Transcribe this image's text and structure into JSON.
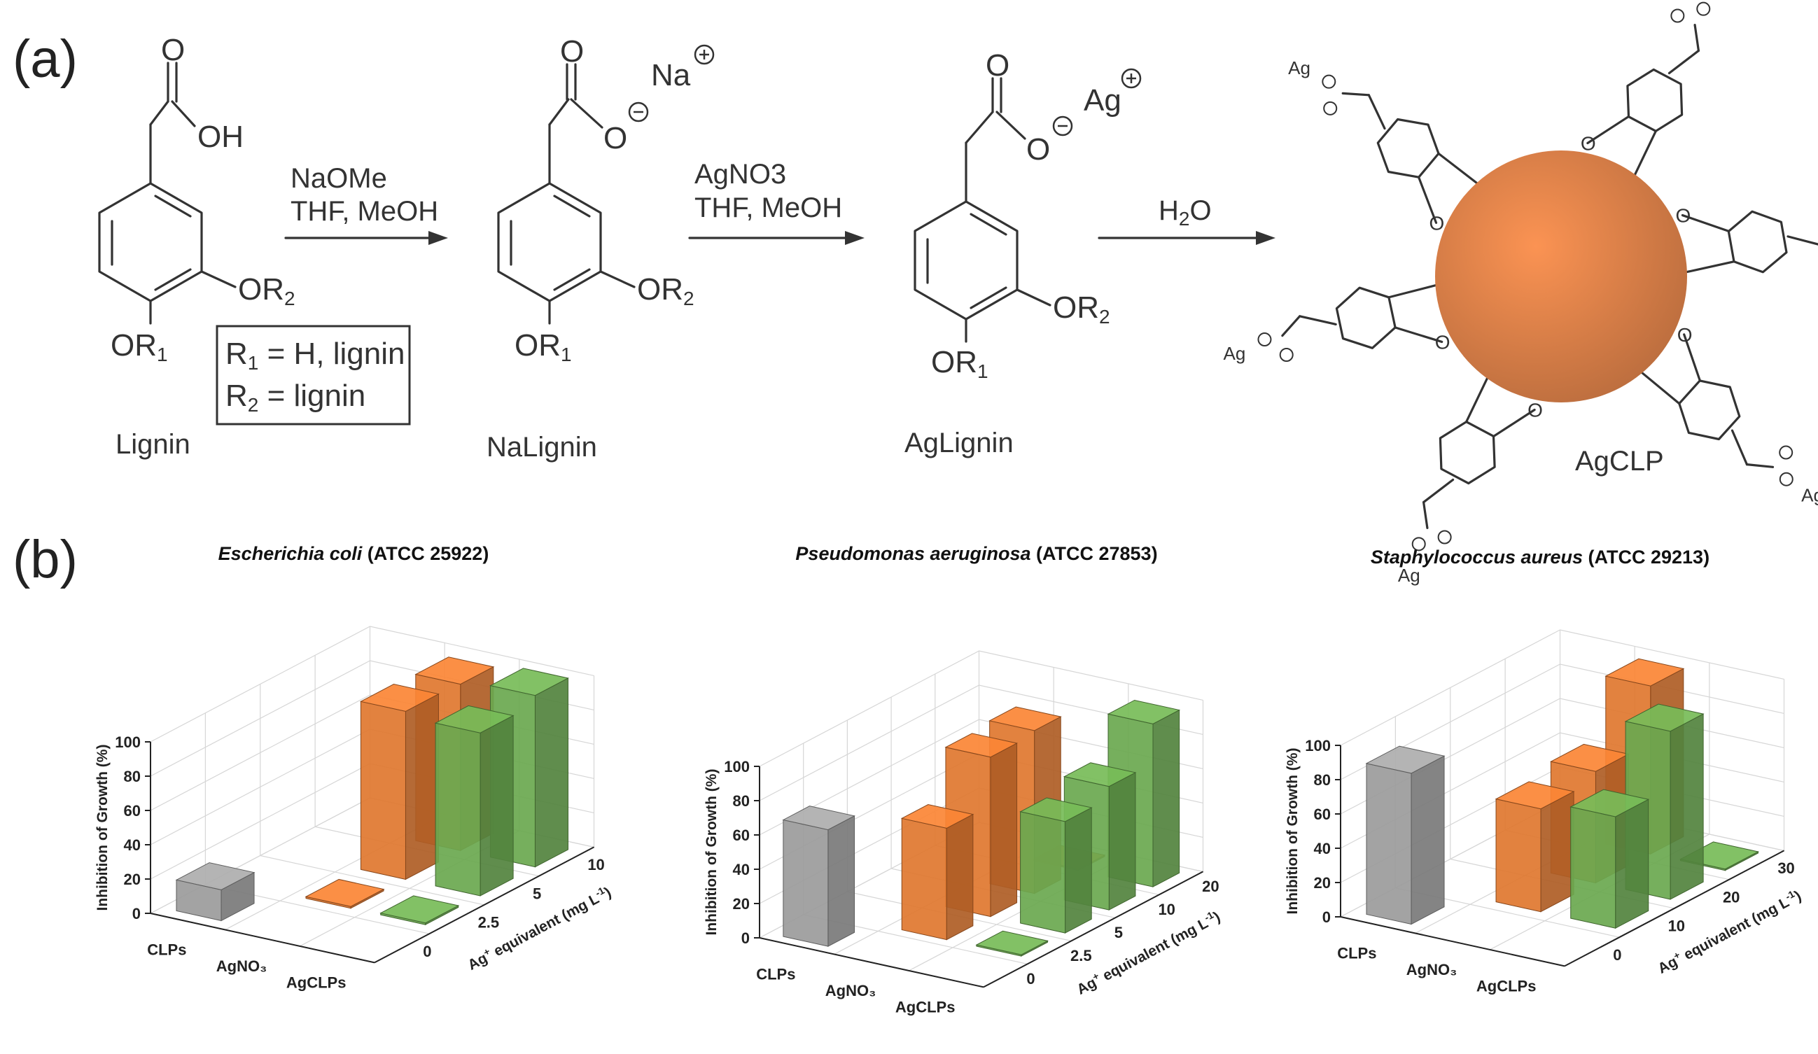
{
  "panel_a": {
    "label": "(a)",
    "compounds": [
      {
        "name": "Lignin",
        "acid": "OH"
      },
      {
        "name": "NaLignin",
        "cation": "Na"
      },
      {
        "name": "AgLignin",
        "cation": "Ag"
      },
      {
        "name": "AgCLP",
        "cation": "Ag"
      }
    ],
    "substituents": {
      "or1": "OR",
      "or1_sub": "1",
      "or2": "OR",
      "or2_sub": "2",
      "ether_o": "O",
      "carbonyl_o": "O"
    },
    "r_groups": {
      "r1_text": "R",
      "r1_sub": "1",
      "r1_rest": " = H, lignin",
      "r2_text": "R",
      "r2_sub": "2",
      "r2_rest": " = lignin"
    },
    "steps": [
      {
        "line1": "NaOMe",
        "line2": "THF, MeOH"
      },
      {
        "line1": "AgNO3",
        "line2": "THF, MeOH"
      },
      {
        "line1": "H",
        "sub": "2",
        "line1b": "O"
      }
    ],
    "particle_color": "#e0834a"
  },
  "panel_b": {
    "label": "(b)",
    "colors": {
      "CLPs": "#9b9b9b",
      "AgNO3": "#e0772f",
      "AgCLPs": "#6aa84f"
    }
  },
  "chart_data": [
    {
      "type": "bar3d",
      "title_italic": "Escherichia coli",
      "title_rest": " (ATCC 25922)",
      "zlabel": "Inhibition of Growth (%)",
      "ylabel": "Ag",
      "ylabel_sup": "+",
      "ylabel_rest": " equivalent (mg L",
      "ylabel_sup2": "-1",
      "ylabel_end": ")",
      "zticks": [
        "0",
        "20",
        "40",
        "60",
        "80",
        "100"
      ],
      "zlim": [
        0,
        100
      ],
      "categories": [
        "CLPs",
        "AgNO₃",
        "AgCLPs"
      ],
      "depth_levels": [
        "0",
        "2.5",
        "5",
        "10"
      ],
      "bars": [
        {
          "series": "CLPs",
          "depth": "0",
          "value": 18
        },
        {
          "series": "AgNO3",
          "depth": "2.5",
          "value": 1
        },
        {
          "series": "AgCLPs",
          "depth": "2.5",
          "value": 1
        },
        {
          "series": "AgNO3",
          "depth": "5",
          "value": 98
        },
        {
          "series": "AgCLPs",
          "depth": "5",
          "value": 95
        },
        {
          "series": "AgNO3",
          "depth": "10",
          "value": 97
        },
        {
          "series": "AgCLPs",
          "depth": "10",
          "value": 100
        }
      ]
    },
    {
      "type": "bar3d",
      "title_italic": "Pseudomonas aeruginosa",
      "title_rest": " (ATCC 27853)",
      "zlabel": "Inhibition of Growth (%)",
      "ylabel": "Ag",
      "ylabel_sup": "+",
      "ylabel_rest": " equivalent (mg L",
      "ylabel_sup2": "-1",
      "ylabel_end": ")",
      "zticks": [
        "0",
        "20",
        "40",
        "60",
        "80",
        "100"
      ],
      "zlim": [
        0,
        100
      ],
      "categories": [
        "CLPs",
        "AgNO₃",
        "AgCLPs"
      ],
      "depth_levels": [
        "0",
        "2.5",
        "5",
        "10",
        "20"
      ],
      "bars": [
        {
          "series": "CLPs",
          "depth": "0",
          "value": 68
        },
        {
          "series": "AgNO3",
          "depth": "2.5",
          "value": 65
        },
        {
          "series": "AgCLPs",
          "depth": "2.5",
          "value": 0
        },
        {
          "series": "AgNO3",
          "depth": "5",
          "value": 93
        },
        {
          "series": "AgCLPs",
          "depth": "5",
          "value": 65
        },
        {
          "series": "AgNO3",
          "depth": "10",
          "value": 95
        },
        {
          "series": "AgCLPs",
          "depth": "10",
          "value": 72
        },
        {
          "series": "AgNO3",
          "depth": "20",
          "value": 0
        },
        {
          "series": "AgCLPs",
          "depth": "20",
          "value": 95
        }
      ]
    },
    {
      "type": "bar3d",
      "title_italic": "Staphylococcus aureus",
      "title_rest": " (ATCC 29213)",
      "zlabel": "Inhibition of Growth (%)",
      "ylabel": "Ag",
      "ylabel_sup": "+",
      "ylabel_rest": " equivalent (mg L",
      "ylabel_sup2": "-1",
      "ylabel_end": ")",
      "zticks": [
        "0",
        "20",
        "40",
        "60",
        "80",
        "100"
      ],
      "zlim": [
        0,
        100
      ],
      "categories": [
        "CLPs",
        "AgNO₃",
        "AgCLPs"
      ],
      "depth_levels": [
        "0",
        "10",
        "20",
        "30"
      ],
      "bars": [
        {
          "series": "CLPs",
          "depth": "0",
          "value": 88
        },
        {
          "series": "AgNO3",
          "depth": "10",
          "value": 60
        },
        {
          "series": "AgCLPs",
          "depth": "10",
          "value": 65
        },
        {
          "series": "AgNO3",
          "depth": "20",
          "value": 65
        },
        {
          "series": "AgCLPs",
          "depth": "20",
          "value": 98
        },
        {
          "series": "AgNO3",
          "depth": "30",
          "value": 98
        },
        {
          "series": "AgCLPs",
          "depth": "30",
          "value": 0
        }
      ]
    }
  ]
}
